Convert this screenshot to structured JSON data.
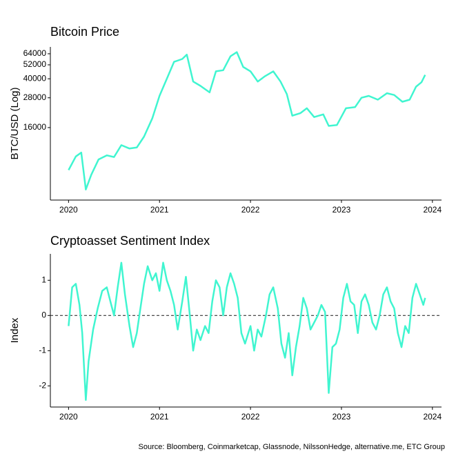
{
  "chart_data": [
    {
      "type": "line",
      "title": "Bitcoin Price",
      "y_label": "BTC/USD (Log)",
      "log_y": true,
      "xlim": [
        2019.8,
        2024.1
      ],
      "xticks": [
        2020,
        2021,
        2022,
        2023,
        2024
      ],
      "ylim": [
        4100,
        72800
      ],
      "yticks": [
        16000,
        28000,
        40000,
        52000,
        64000
      ],
      "series": [
        {
          "name": "Bitcoin",
          "color": "#40f5d0",
          "x": [
            2020.0,
            2020.08,
            2020.14,
            2020.19,
            2020.25,
            2020.33,
            2020.42,
            2020.5,
            2020.58,
            2020.67,
            2020.75,
            2020.83,
            2020.92,
            2021.0,
            2021.08,
            2021.16,
            2021.25,
            2021.3,
            2021.37,
            2021.45,
            2021.55,
            2021.62,
            2021.7,
            2021.78,
            2021.85,
            2021.92,
            2022.0,
            2022.08,
            2022.16,
            2022.25,
            2022.33,
            2022.4,
            2022.46,
            2022.55,
            2022.62,
            2022.7,
            2022.8,
            2022.86,
            2022.95,
            2023.05,
            2023.15,
            2023.22,
            2023.3,
            2023.4,
            2023.5,
            2023.58,
            2023.67,
            2023.75,
            2023.82,
            2023.88,
            2023.92
          ],
          "values": [
            7200,
            9300,
            10000,
            5000,
            6600,
            8800,
            9500,
            9200,
            11500,
            10800,
            11000,
            13500,
            19000,
            29000,
            40000,
            55000,
            58000,
            63000,
            38000,
            35000,
            31000,
            46000,
            47000,
            61000,
            66000,
            50000,
            46000,
            38000,
            42000,
            46000,
            38000,
            30000,
            20000,
            21000,
            23000,
            19500,
            20500,
            16500,
            16800,
            23000,
            23500,
            28000,
            29000,
            27000,
            30500,
            29500,
            26000,
            27000,
            34500,
            37500,
            43000
          ]
        }
      ]
    },
    {
      "type": "line",
      "title": "Cryptoasset Sentiment Index",
      "y_label": "Index",
      "log_y": false,
      "xlim": [
        2019.8,
        2024.1
      ],
      "xticks": [
        2020,
        2021,
        2022,
        2023,
        2024
      ],
      "ylim": [
        -2.6,
        1.75
      ],
      "yticks": [
        -2,
        -1,
        0,
        1
      ],
      "hline": 0,
      "series": [
        {
          "name": "Sentiment",
          "color": "#40f5d0",
          "x": [
            2020.0,
            2020.04,
            2020.08,
            2020.12,
            2020.15,
            2020.19,
            2020.22,
            2020.27,
            2020.32,
            2020.37,
            2020.42,
            2020.46,
            2020.5,
            2020.54,
            2020.58,
            2020.62,
            2020.67,
            2020.71,
            2020.75,
            2020.79,
            2020.83,
            2020.87,
            2020.92,
            2020.96,
            2021.0,
            2021.04,
            2021.08,
            2021.12,
            2021.16,
            2021.2,
            2021.25,
            2021.29,
            2021.33,
            2021.37,
            2021.41,
            2021.45,
            2021.5,
            2021.54,
            2021.58,
            2021.62,
            2021.66,
            2021.7,
            2021.74,
            2021.78,
            2021.82,
            2021.86,
            2021.9,
            2021.94,
            2022.0,
            2022.04,
            2022.08,
            2022.12,
            2022.17,
            2022.21,
            2022.25,
            2022.3,
            2022.34,
            2022.38,
            2022.42,
            2022.46,
            2022.5,
            2022.54,
            2022.58,
            2022.62,
            2022.66,
            2022.7,
            2022.74,
            2022.78,
            2022.82,
            2022.86,
            2022.9,
            2022.94,
            2022.98,
            2023.02,
            2023.06,
            2023.1,
            2023.14,
            2023.18,
            2023.22,
            2023.26,
            2023.3,
            2023.34,
            2023.38,
            2023.42,
            2023.46,
            2023.5,
            2023.54,
            2023.58,
            2023.62,
            2023.66,
            2023.7,
            2023.74,
            2023.78,
            2023.82,
            2023.86,
            2023.9,
            2023.92
          ],
          "values": [
            -0.3,
            0.8,
            0.9,
            0.3,
            -0.5,
            -2.4,
            -1.3,
            -0.4,
            0.2,
            0.7,
            0.8,
            0.4,
            0.0,
            0.8,
            1.5,
            0.6,
            -0.3,
            -0.9,
            -0.5,
            0.2,
            0.9,
            1.4,
            1.0,
            1.2,
            0.7,
            1.5,
            1.0,
            0.7,
            0.3,
            -0.4,
            0.4,
            1.1,
            0.1,
            -1.0,
            -0.4,
            -0.7,
            -0.3,
            -0.5,
            0.4,
            1.0,
            0.8,
            0.0,
            0.8,
            1.2,
            0.9,
            0.5,
            -0.5,
            -0.8,
            -0.3,
            -1.0,
            -0.4,
            -0.6,
            0.0,
            0.6,
            0.8,
            0.2,
            -0.8,
            -1.2,
            -0.5,
            -1.7,
            -0.9,
            -0.3,
            0.5,
            0.2,
            -0.4,
            -0.2,
            0.0,
            0.3,
            0.1,
            -2.2,
            -0.9,
            -0.8,
            -0.4,
            0.5,
            0.9,
            0.4,
            0.3,
            -0.5,
            0.4,
            0.6,
            0.3,
            -0.2,
            -0.4,
            0.0,
            0.6,
            0.8,
            0.4,
            0.2,
            -0.5,
            -0.9,
            -0.3,
            -0.5,
            0.5,
            0.9,
            0.6,
            0.3,
            0.5
          ]
        }
      ]
    }
  ],
  "source": "Source: Bloomberg, Coinmarketcap, Glassnode, NilssonHedge, alternative.me, ETC Group"
}
